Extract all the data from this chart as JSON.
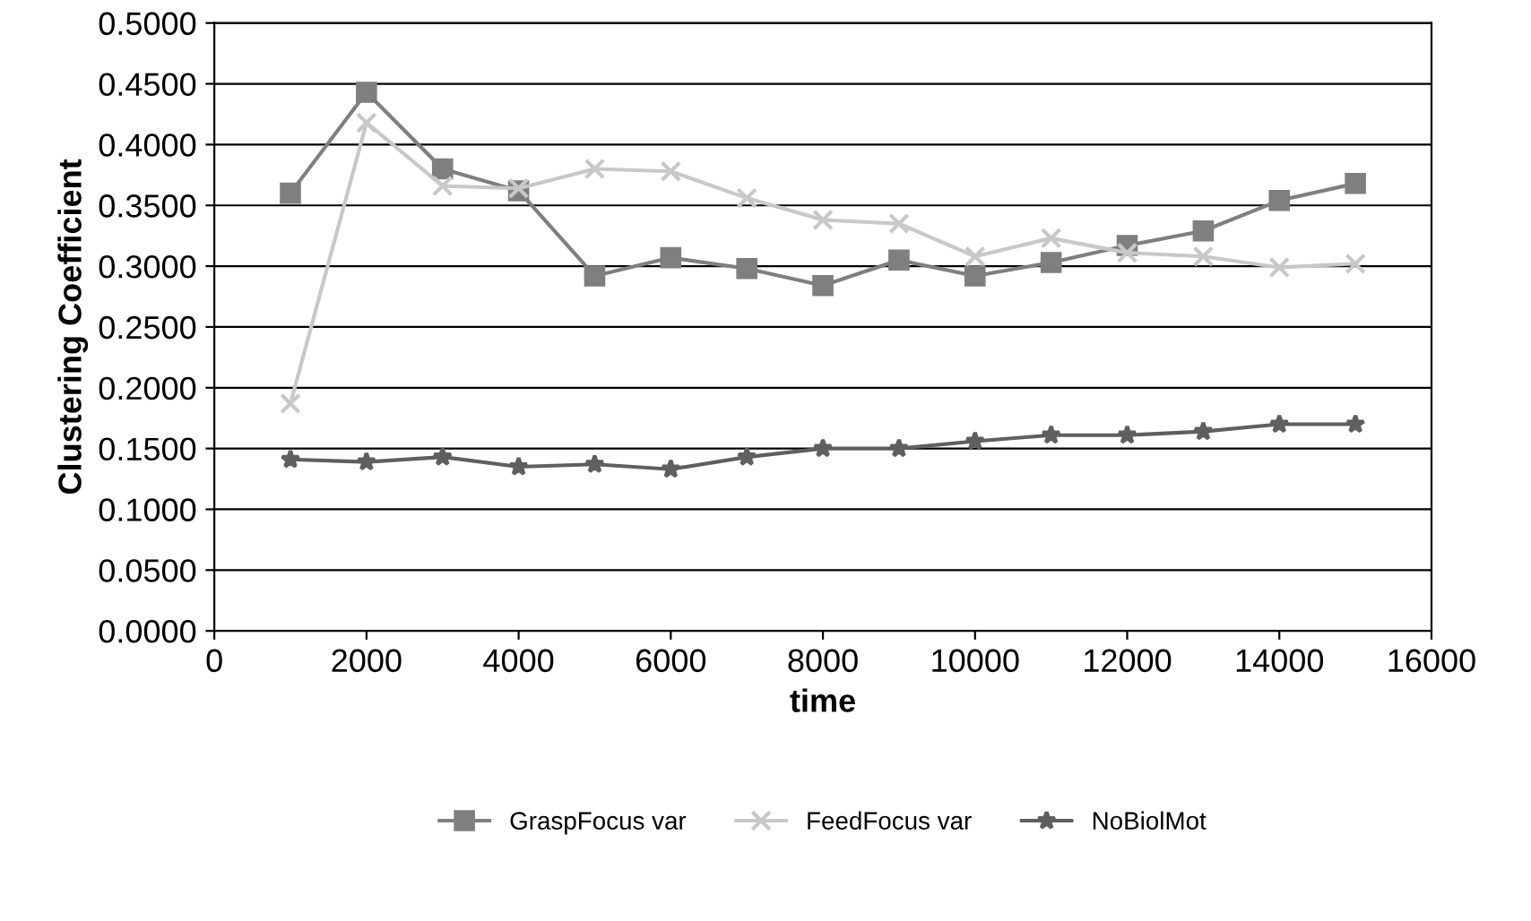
{
  "chart_data": {
    "type": "line",
    "xlabel": "time",
    "ylabel": "Clustering Coefficient",
    "x": [
      1000,
      2000,
      3000,
      4000,
      5000,
      6000,
      7000,
      8000,
      9000,
      10000,
      11000,
      12000,
      13000,
      14000,
      15000
    ],
    "series": [
      {
        "name": "GraspFocus var",
        "color": "#7f7f7f",
        "marker": "square",
        "values": [
          0.36,
          0.443,
          0.38,
          0.362,
          0.292,
          0.307,
          0.298,
          0.284,
          0.305,
          0.292,
          0.303,
          0.317,
          0.329,
          0.354,
          0.368
        ]
      },
      {
        "name": "FeedFocus var",
        "color": "#c8c8c8",
        "marker": "cross",
        "values": [
          0.187,
          0.418,
          0.366,
          0.364,
          0.38,
          0.378,
          0.356,
          0.338,
          0.335,
          0.308,
          0.323,
          0.311,
          0.308,
          0.299,
          0.302
        ]
      },
      {
        "name": "NoBiolMot",
        "color": "#5f5f5f",
        "marker": "star",
        "values": [
          0.141,
          0.139,
          0.143,
          0.135,
          0.137,
          0.133,
          0.143,
          0.15,
          0.15,
          0.156,
          0.161,
          0.161,
          0.164,
          0.17,
          0.17
        ]
      }
    ],
    "xlim": [
      0,
      16000
    ],
    "xticks": [
      0,
      2000,
      4000,
      6000,
      8000,
      10000,
      12000,
      14000,
      16000
    ],
    "ylim": [
      0,
      0.5
    ],
    "yticks": [
      {
        "value": 0,
        "label": "0.0000"
      },
      {
        "value": 0.05,
        "label": "0.0500"
      },
      {
        "value": 0.1,
        "label": "0.1000"
      },
      {
        "value": 0.15,
        "label": "0.1500"
      },
      {
        "value": 0.2,
        "label": "0.2000"
      },
      {
        "value": 0.25,
        "label": "0.2500"
      },
      {
        "value": 0.3,
        "label": "0.3000"
      },
      {
        "value": 0.35,
        "label": "0.3500"
      },
      {
        "value": 0.4,
        "label": "0.4000"
      },
      {
        "value": 0.45,
        "label": "0.4500"
      },
      {
        "value": 0.5,
        "label": "0.5000"
      }
    ],
    "grid": "y",
    "legend": "bottom",
    "line_style": "solid"
  }
}
